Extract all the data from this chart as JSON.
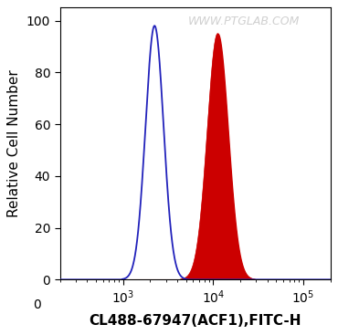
{
  "title": "",
  "xlabel": "CL488-67947(ACF1),FITC-H",
  "ylabel": "Relative Cell Number",
  "xlim_log": [
    200,
    200000
  ],
  "ylim": [
    0,
    105
  ],
  "yticks": [
    0,
    20,
    40,
    60,
    80,
    100
  ],
  "blue_peak_log": 3.35,
  "blue_peak_y": 98,
  "blue_sigma": 0.1,
  "red_peak_log": 4.05,
  "red_peak_y": 95,
  "red_sigma": 0.115,
  "blue_color": "#2222bb",
  "red_color": "#cc0000",
  "bg_color": "#ffffff",
  "watermark": "WWW.PTGLAB.COM",
  "watermark_color": "#c8c8c8",
  "watermark_fontsize": 9,
  "xlabel_fontsize": 11,
  "ylabel_fontsize": 11,
  "tick_fontsize": 10
}
